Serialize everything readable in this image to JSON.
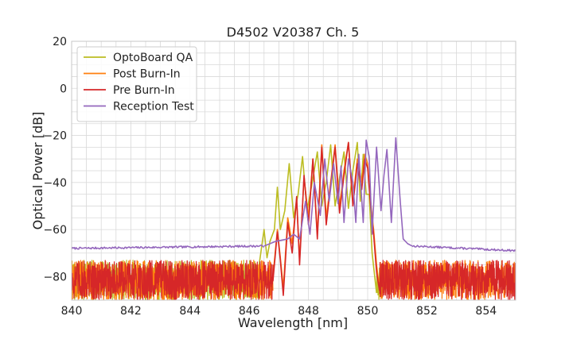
{
  "chart_data": {
    "type": "line",
    "title": "D4502 V20387 Ch. 5",
    "xlabel": "Wavelength [nm]",
    "ylabel": "Optical Power [dB]",
    "xlim": [
      840,
      855
    ],
    "ylim": [
      -90,
      20
    ],
    "xticks": [
      840,
      842,
      844,
      846,
      848,
      850,
      852,
      854
    ],
    "yticks": [
      20,
      0,
      -20,
      -40,
      -60,
      -80
    ],
    "grid": true,
    "legend_position": "top-left",
    "series": [
      {
        "name": "OptoBoard QA",
        "color": "#bcbd22",
        "noise_floor": {
          "x_range": [
            840,
            846.3
          ],
          "low": -90,
          "high": -73
        },
        "noise_floor_right": {
          "x_range": [
            850.3,
            850.5
          ],
          "low": -90,
          "high": -76
        },
        "x": [
          846.3,
          846.5,
          846.6,
          846.7,
          846.85,
          846.95,
          847.05,
          847.2,
          847.35,
          847.5,
          847.65,
          847.8,
          847.95,
          848.1,
          848.3,
          848.45,
          848.6,
          848.75,
          848.9,
          849.05,
          849.2,
          849.35,
          849.5,
          849.65,
          849.75,
          849.85,
          849.95,
          850.05,
          850.15,
          850.3
        ],
        "y": [
          -78,
          -60,
          -72,
          -65,
          -60,
          -42,
          -60,
          -52,
          -32,
          -55,
          -45,
          -29,
          -52,
          -42,
          -27,
          -50,
          -40,
          -24,
          -50,
          -38,
          -27,
          -51,
          -35,
          -23,
          -48,
          -28,
          -45,
          -45,
          -70,
          -87
        ]
      },
      {
        "name": "Post Burn-In",
        "color": "#ff7f0e",
        "noise_floor": {
          "x_range": [
            840,
            846.8
          ],
          "low": -90,
          "high": -73
        },
        "noise_floor_right": {
          "x_range": [
            850.4,
            855
          ],
          "low": -90,
          "high": -73
        },
        "x": [
          846.8,
          846.95,
          847.05,
          847.15,
          847.3,
          847.45,
          847.6,
          847.7,
          847.85,
          848.0,
          848.15,
          848.3,
          848.45,
          848.6,
          848.75,
          848.9,
          849.05,
          849.2,
          849.35,
          849.5,
          849.65,
          849.8,
          849.9,
          850.0,
          850.1,
          850.2,
          850.3,
          850.4
        ],
        "y": [
          -80,
          -60,
          -72,
          -85,
          -55,
          -66,
          -47,
          -73,
          -38,
          -55,
          -30,
          -62,
          -24,
          -55,
          -40,
          -24,
          -50,
          -35,
          -23,
          -48,
          -30,
          -40,
          -28,
          -32,
          -48,
          -60,
          -75,
          -85
        ]
      },
      {
        "name": "Pre Burn-In",
        "color": "#d62728",
        "noise_floor": {
          "x_range": [
            840,
            846.8
          ],
          "low": -90,
          "high": -73
        },
        "noise_floor_right": {
          "x_range": [
            850.4,
            855
          ],
          "low": -90,
          "high": -73
        },
        "x": [
          846.8,
          846.95,
          847.05,
          847.15,
          847.3,
          847.45,
          847.6,
          847.7,
          847.85,
          848.0,
          848.15,
          848.3,
          848.45,
          848.6,
          848.75,
          848.9,
          849.05,
          849.2,
          849.35,
          849.5,
          849.65,
          849.8,
          849.9,
          850.0,
          850.1,
          850.2,
          850.3,
          850.4
        ],
        "y": [
          -82,
          -61,
          -73,
          -88,
          -57,
          -70,
          -46,
          -75,
          -37,
          -58,
          -30,
          -64,
          -25,
          -58,
          -41,
          -25,
          -53,
          -37,
          -23,
          -50,
          -32,
          -43,
          -30,
          -34,
          -50,
          -62,
          -78,
          -86
        ]
      },
      {
        "name": "Reception Test",
        "color": "#9467bd",
        "baseline_left": {
          "x_range": [
            840,
            846.5
          ],
          "y_start": -68,
          "y_end": -67
        },
        "baseline_right": {
          "x_range": [
            851.5,
            855
          ],
          "y_start": -67,
          "y_end": -69
        },
        "x": [
          846.5,
          846.9,
          847.3,
          847.5,
          847.7,
          847.9,
          848.05,
          848.2,
          848.4,
          848.55,
          848.7,
          848.85,
          849.0,
          849.1,
          849.2,
          849.35,
          849.5,
          849.6,
          849.7,
          849.85,
          849.95,
          850.05,
          850.15,
          850.3,
          850.45,
          850.55,
          850.65,
          850.8,
          850.95,
          851.1,
          851.2,
          851.35,
          851.5
        ],
        "y": [
          -67,
          -65,
          -64,
          -62,
          -64,
          -48,
          -62,
          -40,
          -54,
          -30,
          -48,
          -32,
          -49,
          -33,
          -57,
          -30,
          -40,
          -57,
          -28,
          -57,
          -22,
          -29,
          -62,
          -25,
          -52,
          -37,
          -26,
          -57,
          -21,
          -48,
          -64,
          -66,
          -67
        ]
      }
    ]
  }
}
